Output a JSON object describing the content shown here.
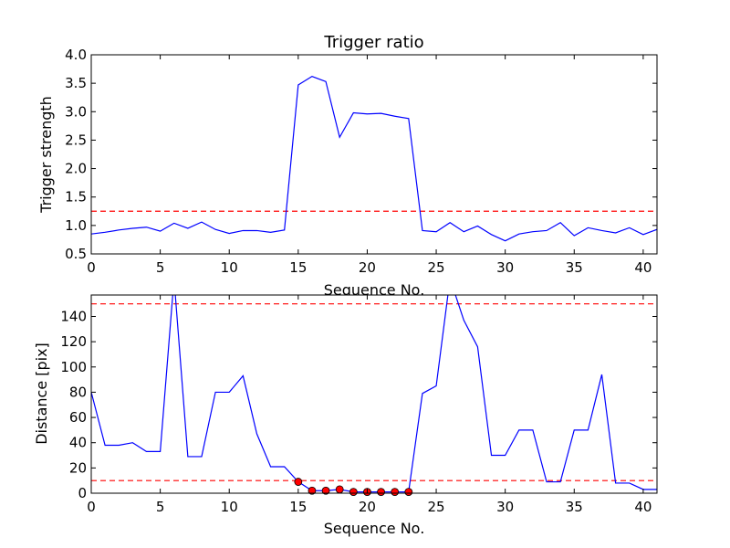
{
  "chart_data": [
    {
      "type": "line",
      "title": "Trigger ratio",
      "xlabel": "Sequence No.",
      "ylabel": "Trigger strength",
      "xlim": [
        0,
        41
      ],
      "ylim": [
        0.5,
        4.0
      ],
      "xticks": [
        0,
        5,
        10,
        15,
        20,
        25,
        30,
        35,
        40
      ],
      "yticks": [
        "0.5",
        "1.0",
        "1.5",
        "2.0",
        "2.5",
        "3.0",
        "3.5",
        "4.0"
      ],
      "series": [
        {
          "x": [
            0,
            1,
            2,
            3,
            4,
            5,
            6,
            7,
            8,
            9,
            10,
            11,
            12,
            13,
            14,
            15,
            16,
            17,
            18,
            19,
            20,
            21,
            22,
            23,
            24,
            25,
            26,
            27,
            28,
            29,
            30,
            31,
            32,
            33,
            34,
            35,
            36,
            37,
            38,
            39,
            40,
            41
          ],
          "values": [
            0.85,
            0.88,
            0.92,
            0.95,
            0.97,
            0.9,
            1.04,
            0.95,
            1.06,
            0.93,
            0.86,
            0.91,
            0.91,
            0.88,
            0.92,
            3.47,
            3.62,
            3.53,
            2.55,
            2.98,
            2.96,
            2.97,
            2.92,
            2.88,
            0.91,
            0.89,
            1.05,
            0.89,
            0.99,
            0.84,
            0.73,
            0.85,
            0.89,
            0.91,
            1.05,
            0.82,
            0.96,
            0.91,
            0.87,
            0.96,
            0.84,
            0.93
          ],
          "color": "#0000ff"
        }
      ],
      "threshold_lines": [
        {
          "value": 1.25,
          "color": "#ff0000",
          "style": "dashed"
        }
      ]
    },
    {
      "type": "line",
      "title": "",
      "xlabel": "Sequence No.",
      "ylabel": "Distance [pix]",
      "xlim": [
        0,
        41
      ],
      "ylim": [
        0,
        157
      ],
      "xticks": [
        0,
        5,
        10,
        15,
        20,
        25,
        30,
        35,
        40
      ],
      "yticks": [
        0,
        20,
        40,
        60,
        80,
        100,
        120,
        140
      ],
      "series": [
        {
          "x": [
            0,
            1,
            2,
            3,
            4,
            5,
            6,
            7,
            8,
            9,
            10,
            11,
            12,
            13,
            14,
            15,
            16,
            17,
            18,
            19,
            20,
            21,
            22,
            23,
            24,
            25,
            26,
            27,
            28,
            29,
            30,
            31,
            32,
            33,
            34,
            35,
            36,
            37,
            38,
            39,
            40,
            41
          ],
          "values": [
            80,
            38,
            38,
            40,
            33,
            33,
            170,
            29,
            29,
            80,
            80,
            93,
            47,
            21,
            21,
            9,
            2,
            2,
            3,
            1,
            1,
            1,
            1,
            1,
            79,
            85,
            170,
            137,
            116,
            30,
            30,
            50,
            50,
            9,
            9,
            50,
            50,
            94,
            8,
            8,
            3,
            3
          ],
          "color": "#0000ff"
        }
      ],
      "markers": {
        "x": [
          15,
          16,
          17,
          18,
          19,
          20,
          21,
          22,
          23
        ],
        "values": [
          9,
          2,
          2,
          3,
          1,
          1,
          1,
          1,
          1
        ],
        "color": "#ff0000"
      },
      "threshold_lines": [
        {
          "value": 150,
          "color": "#ff0000",
          "style": "dashed"
        },
        {
          "value": 10,
          "color": "#ff0000",
          "style": "dashed"
        }
      ]
    }
  ]
}
